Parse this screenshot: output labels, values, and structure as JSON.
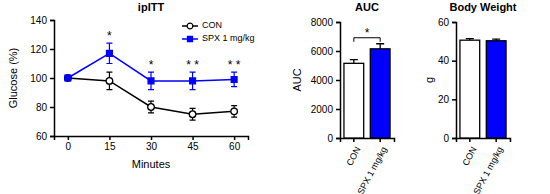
{
  "chart_data": [
    {
      "type": "line",
      "title": "ipITT",
      "x_label": "Minutes",
      "y_label": "Glucose (%)",
      "x": [
        0,
        15,
        30,
        45,
        60
      ],
      "xlim": [
        -5,
        65
      ],
      "xticks": [
        0,
        15,
        30,
        45,
        60
      ],
      "ylim": [
        60,
        140
      ],
      "yticks": [
        60,
        80,
        100,
        120,
        140
      ],
      "legend": "top-right",
      "series": [
        {
          "name": "CON",
          "color": "#000000",
          "marker": "open-circle",
          "line_style": "solid",
          "values": [
            100,
            98,
            80,
            75,
            77
          ],
          "errors": [
            0,
            6,
            4,
            4,
            4
          ]
        },
        {
          "name": "SPX 1 mg/kg",
          "color": "#0000ff",
          "marker": "square",
          "line_style": "solid",
          "values": [
            100,
            117,
            98,
            98,
            99
          ],
          "errors": [
            0,
            7,
            6,
            6,
            5
          ]
        }
      ],
      "annotations": [
        {
          "x": 15,
          "text": "*"
        },
        {
          "x": 30,
          "text": "*"
        },
        {
          "x": 45,
          "text": "* *"
        },
        {
          "x": 60,
          "text": "* *"
        }
      ]
    },
    {
      "type": "bar",
      "title": "AUC",
      "y_label": "AUC",
      "categories": [
        "CON",
        "SPX 1 mg/kg"
      ],
      "values": [
        5150,
        6150
      ],
      "errors": [
        250,
        350
      ],
      "colors": [
        "#ffffff",
        "#0000ff"
      ],
      "ylim": [
        0,
        8000
      ],
      "yticks": [
        0,
        2000,
        4000,
        6000,
        8000
      ],
      "annotations": [
        {
          "text": "*",
          "from": 0,
          "to": 1
        }
      ]
    },
    {
      "type": "bar",
      "title": "Body Weight",
      "y_label": "g",
      "categories": [
        "CON",
        "SPX 1 mg/kg"
      ],
      "values": [
        50.6,
        50.3
      ],
      "errors": [
        0.8,
        0.8
      ],
      "colors": [
        "#ffffff",
        "#0000ff"
      ],
      "ylim": [
        0,
        60
      ],
      "yticks": [
        0,
        20,
        40,
        60
      ]
    }
  ]
}
